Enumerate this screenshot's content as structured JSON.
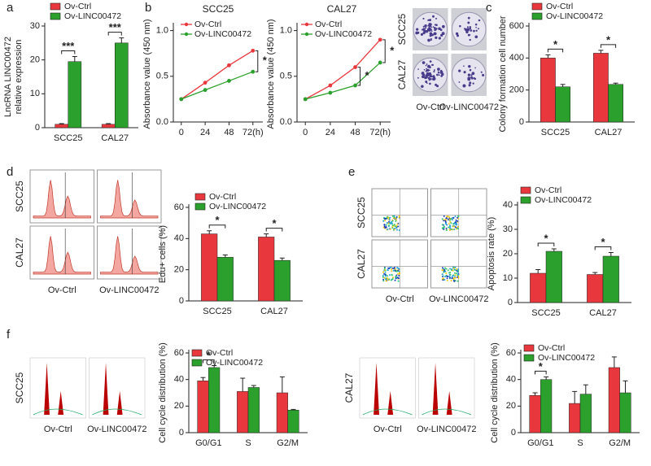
{
  "chart_data": [
    {
      "type": "bar",
      "panel": "a",
      "ylabel": [
        "LncRNA LINC00472",
        "relative expression"
      ],
      "categories": [
        "SCC25",
        "CAL27"
      ],
      "series": [
        {
          "name": "Ov-Ctrl",
          "color": "#e8383d",
          "values": [
            1,
            1
          ],
          "errors": [
            0.2,
            0.2
          ]
        },
        {
          "name": "Ov-LINC00472",
          "color": "#2ca02c",
          "values": [
            19.5,
            25
          ],
          "errors": [
            1.5,
            1.5
          ]
        }
      ],
      "ylim": [
        0,
        30
      ],
      "yticks": [
        0,
        10,
        20,
        30
      ],
      "legend": "upper left",
      "annotations": [
        {
          "text": "***",
          "category": "SCC25"
        },
        {
          "text": "***",
          "category": "CAL27"
        }
      ]
    },
    {
      "type": "line",
      "panel": "b",
      "title": "SCC25",
      "ylabel": [
        "Absorbance value (450 nm)"
      ],
      "x": [
        0,
        24,
        48,
        72
      ],
      "series": [
        {
          "name": "Ov-Ctrl",
          "color": "#e8383d",
          "values": [
            0.25,
            0.43,
            0.62,
            0.78
          ]
        },
        {
          "name": "Ov-LINC00472",
          "color": "#2ca02c",
          "values": [
            0.25,
            0.35,
            0.45,
            0.55
          ]
        }
      ],
      "xlim": [
        -8,
        82
      ],
      "xticks": [
        0,
        24,
        48,
        {
          "value": 72,
          "label": "72(h)"
        }
      ],
      "ylim": [
        0,
        1.05
      ],
      "yticks": [
        {
          "value": 0,
          "label": "0.0"
        },
        {
          "value": 0.5,
          "label": "0.5"
        },
        {
          "value": 1,
          "label": "1.0"
        }
      ],
      "legend": "upper left",
      "annotations": [
        {
          "text": "*",
          "x": 72
        }
      ]
    },
    {
      "type": "line",
      "title": "CAL27",
      "ylabel": [
        "Absorbance value (450 nm)"
      ],
      "x": [
        0,
        24,
        48,
        72
      ],
      "series": [
        {
          "name": "Ov-Ctrl",
          "color": "#e8383d",
          "values": [
            0.25,
            0.4,
            0.6,
            0.9
          ]
        },
        {
          "name": "Ov-LINC00472",
          "color": "#2ca02c",
          "values": [
            0.25,
            0.32,
            0.4,
            0.65
          ]
        }
      ],
      "xlim": [
        -8,
        82
      ],
      "xticks": [
        0,
        24,
        48,
        {
          "value": 72,
          "label": "72(h)"
        }
      ],
      "ylim": [
        0,
        1.05
      ],
      "yticks": [
        {
          "value": 0,
          "label": "0.0"
        },
        {
          "value": 0.5,
          "label": "0.5"
        },
        {
          "value": 1,
          "label": "1.0"
        }
      ],
      "legend": "upper left",
      "annotations": [
        {
          "text": "*",
          "x": 48
        },
        {
          "text": "*",
          "x": 72
        }
      ]
    },
    {
      "type": "bar",
      "panel": "c",
      "ylabel": [
        "Colony formation cell number"
      ],
      "row_labels": [
        "SCC25",
        "CAL27"
      ],
      "column_labels": [
        "Ov-Ctrl",
        "Ov-LINC00472"
      ],
      "categories": [
        "SCC25",
        "CAL27"
      ],
      "series": [
        {
          "name": "Ov-Ctrl",
          "color": "#e8383d",
          "values": [
            400,
            430
          ],
          "errors": [
            20,
            18
          ]
        },
        {
          "name": "Ov-LINC00472",
          "color": "#2ca02c",
          "values": [
            220,
            235
          ],
          "errors": [
            15,
            8
          ]
        }
      ],
      "ylim": [
        0,
        600
      ],
      "yticks": [
        0,
        200,
        400,
        600
      ],
      "legend": "upper left",
      "annotations": [
        {
          "text": "*",
          "category": "SCC25"
        },
        {
          "text": "*",
          "category": "CAL27"
        }
      ]
    },
    {
      "type": "bar",
      "panel": "d",
      "ylabel": [
        "Edu+ cells (%)"
      ],
      "row_labels": [
        "SCC25",
        "CAL27"
      ],
      "column_labels": [
        "Ov-Ctrl",
        "Ov-LINC00472"
      ],
      "categories": [
        "SCC25",
        "CAL27"
      ],
      "series": [
        {
          "name": "Ov-Ctrl",
          "color": "#e8383d",
          "values": [
            43,
            41
          ],
          "errors": [
            2,
            2
          ]
        },
        {
          "name": "Ov-LINC00472",
          "color": "#2ca02c",
          "values": [
            28,
            26
          ],
          "errors": [
            1.5,
            1.5
          ]
        }
      ],
      "ylim": [
        0,
        60
      ],
      "yticks": [
        0,
        20,
        40,
        60
      ],
      "legend": "upper left",
      "annotations": [
        {
          "text": "*",
          "category": "SCC25"
        },
        {
          "text": "*",
          "category": "CAL27"
        }
      ]
    },
    {
      "type": "bar",
      "panel": "e",
      "ylabel": [
        "Apoptosis rate (%)"
      ],
      "row_labels": [
        "SCC25",
        "CAL27"
      ],
      "column_labels": [
        "Ov-Ctrl",
        "Ov-LINC00472"
      ],
      "categories": [
        "SCC25",
        "CAL27"
      ],
      "series": [
        {
          "name": "Ov-Ctrl",
          "color": "#e8383d",
          "values": [
            12,
            11.5
          ],
          "errors": [
            1.5,
            0.8
          ]
        },
        {
          "name": "Ov-LINC00472",
          "color": "#2ca02c",
          "values": [
            21,
            19
          ],
          "errors": [
            1,
            1.5
          ]
        }
      ],
      "ylim": [
        0,
        40
      ],
      "yticks": [
        0,
        10,
        20,
        30,
        40
      ],
      "legend": "upper left",
      "annotations": [
        {
          "text": "*",
          "category": "SCC25"
        },
        {
          "text": "*",
          "category": "CAL27"
        }
      ]
    },
    {
      "type": "bar",
      "panel": "f",
      "ylabel": [
        "Cell cycle distribution (%)"
      ],
      "row_labels": [
        "SCC25"
      ],
      "column_labels": [
        "Ov-Ctrl",
        "Ov-LINC00472"
      ],
      "categories": [
        "G0/G1",
        "S",
        "G2/M"
      ],
      "series": [
        {
          "name": "Ov-Ctrl",
          "color": "#e8383d",
          "values": [
            39,
            31,
            30
          ],
          "errors": [
            2.5,
            10,
            12
          ]
        },
        {
          "name": "Ov-LINC00472",
          "color": "#2ca02c",
          "values": [
            49,
            34,
            17
          ],
          "errors": [
            1.5,
            1.5,
            0.5
          ]
        }
      ],
      "ylim": [
        0,
        60
      ],
      "yticks": [
        0,
        20,
        40,
        60
      ],
      "legend": "upper left",
      "annotations": [
        {
          "text": "*",
          "category": "G0/G1"
        }
      ]
    },
    {
      "type": "bar",
      "ylabel": [
        "Cell cycle distribution (%)"
      ],
      "row_labels": [
        "CAL27"
      ],
      "column_labels": [
        "Ov-Ctrl",
        "Ov-LINC00472"
      ],
      "categories": [
        "G0/G1",
        "S",
        "G2/M"
      ],
      "series": [
        {
          "name": "Ov-Ctrl",
          "color": "#e8383d",
          "values": [
            28,
            22,
            49
          ],
          "errors": [
            2,
            9,
            8
          ]
        },
        {
          "name": "Ov-LINC00472",
          "color": "#2ca02c",
          "values": [
            40,
            29,
            30
          ],
          "errors": [
            2,
            7,
            9
          ]
        }
      ],
      "ylim": [
        0,
        60
      ],
      "yticks": [
        0,
        20,
        40,
        60
      ],
      "legend": "upper left",
      "annotations": [
        {
          "text": "*",
          "category": "G0/G1"
        }
      ]
    }
  ]
}
